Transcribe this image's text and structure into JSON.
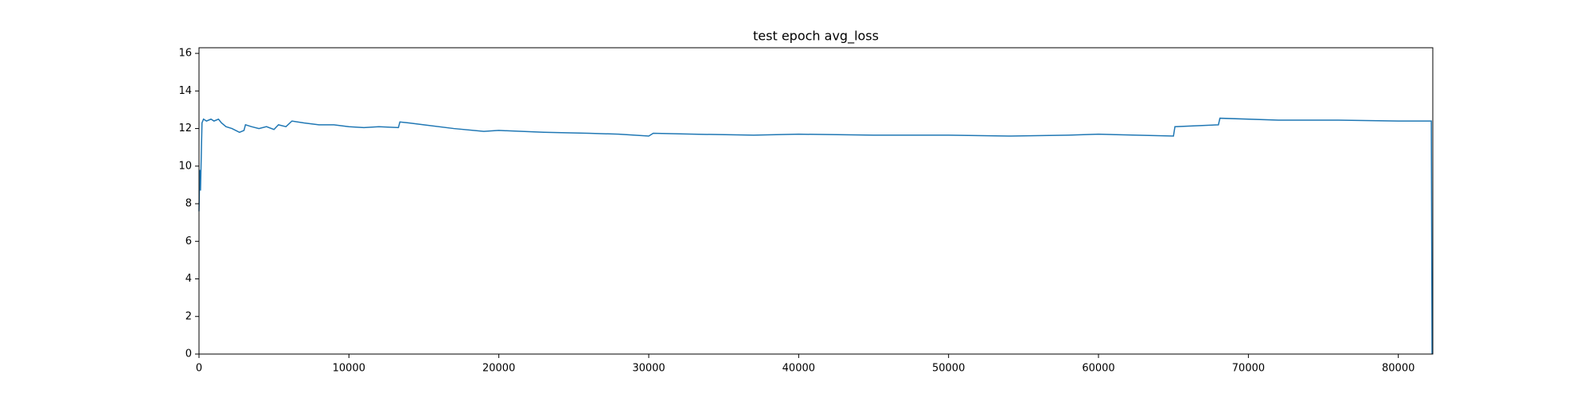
{
  "chart_data": {
    "type": "line",
    "title": "test epoch avg_loss",
    "title_color": "#ff0000",
    "x": [
      0,
      50,
      100,
      200,
      300,
      500,
      800,
      1000,
      1300,
      1500,
      1800,
      2200,
      2700,
      3000,
      3100,
      3500,
      4000,
      4500,
      5000,
      5300,
      5800,
      6200,
      7000,
      8000,
      9000,
      10000,
      11000,
      12000,
      13300,
      13400,
      14000,
      15000,
      17000,
      19000,
      20000,
      23000,
      26000,
      28000,
      30000,
      30300,
      33000,
      37000,
      40000,
      45000,
      50000,
      54000,
      58000,
      60000,
      65000,
      65100,
      68000,
      68100,
      72000,
      76000,
      80000,
      82200,
      82250
    ],
    "series": [
      {
        "color": "#1f77b4",
        "values": [
          7.6,
          9.8,
          8.7,
          12.3,
          12.5,
          12.4,
          12.5,
          12.4,
          12.5,
          12.3,
          12.1,
          12.0,
          11.8,
          11.9,
          12.2,
          12.1,
          12.0,
          12.1,
          11.95,
          12.2,
          12.1,
          12.4,
          12.3,
          12.2,
          12.2,
          12.1,
          12.05,
          12.1,
          12.05,
          12.35,
          12.3,
          12.2,
          12.0,
          11.85,
          11.9,
          11.8,
          11.75,
          11.7,
          11.6,
          11.75,
          11.7,
          11.65,
          11.7,
          11.65,
          11.65,
          11.6,
          11.65,
          11.7,
          11.6,
          12.1,
          12.2,
          12.55,
          12.45,
          12.45,
          12.4,
          12.4,
          0
        ]
      }
    ],
    "xlim": [
      0,
      82300
    ],
    "xticks": [
      0,
      10000,
      20000,
      30000,
      40000,
      50000,
      60000,
      70000,
      80000
    ],
    "ylim": [
      0,
      16.3
    ],
    "yticks": [
      0,
      2,
      4,
      6,
      8,
      10,
      12,
      14,
      16
    ]
  }
}
